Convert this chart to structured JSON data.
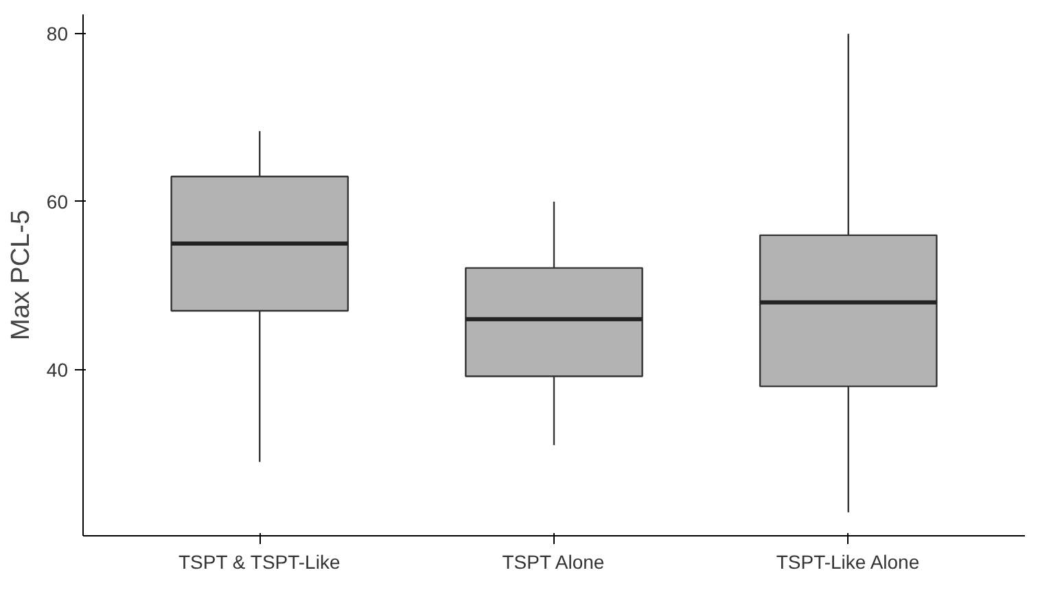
{
  "chart_data": {
    "type": "box",
    "ylabel": "Max PCL-5",
    "categories": [
      "TSPT & TSPT-Like",
      "TSPT Alone",
      "TSPT-Like Alone"
    ],
    "boxes": [
      {
        "low": 29,
        "q1": 47,
        "median": 55,
        "q3": 63,
        "high": 68.4
      },
      {
        "low": 31,
        "q1": 39.2,
        "median": 46,
        "q3": 52.1,
        "high": 60
      },
      {
        "low": 23,
        "q1": 38,
        "median": 48,
        "q3": 56,
        "high": 80
      }
    ],
    "color": "#b3b3b3",
    "ylim": [
      20.2,
      82.3
    ],
    "yticks": [
      40,
      60,
      80
    ],
    "grid": false
  }
}
